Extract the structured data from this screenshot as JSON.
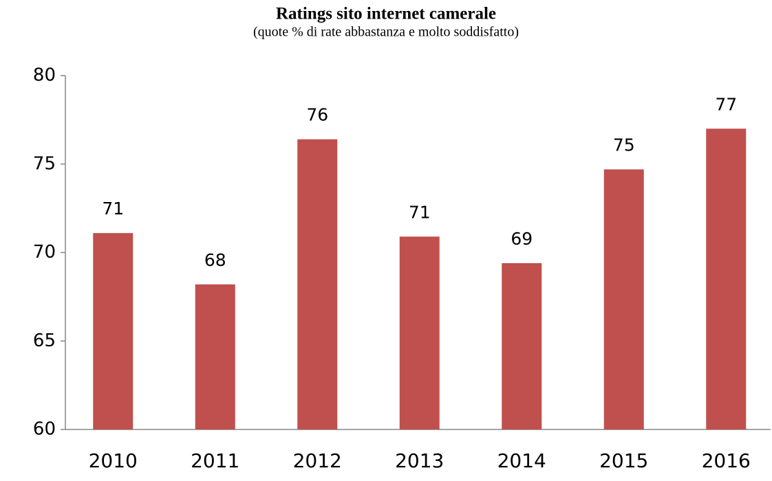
{
  "chart_data": {
    "type": "bar",
    "title": "Ratings sito internet camerale",
    "subtitle": "(quote % di rate abbastanza e molto soddisfatto)",
    "categories": [
      "2010",
      "2011",
      "2012",
      "2013",
      "2014",
      "2015",
      "2016"
    ],
    "values": [
      71.1,
      68.2,
      76.4,
      70.9,
      69.4,
      74.7,
      77.0
    ],
    "value_labels": [
      "71",
      "68",
      "76",
      "71",
      "69",
      "75",
      "77"
    ],
    "color": "#c0504d",
    "ylim": [
      60,
      80
    ],
    "yticks": [
      60,
      65,
      70,
      75,
      80
    ],
    "grid": false
  }
}
